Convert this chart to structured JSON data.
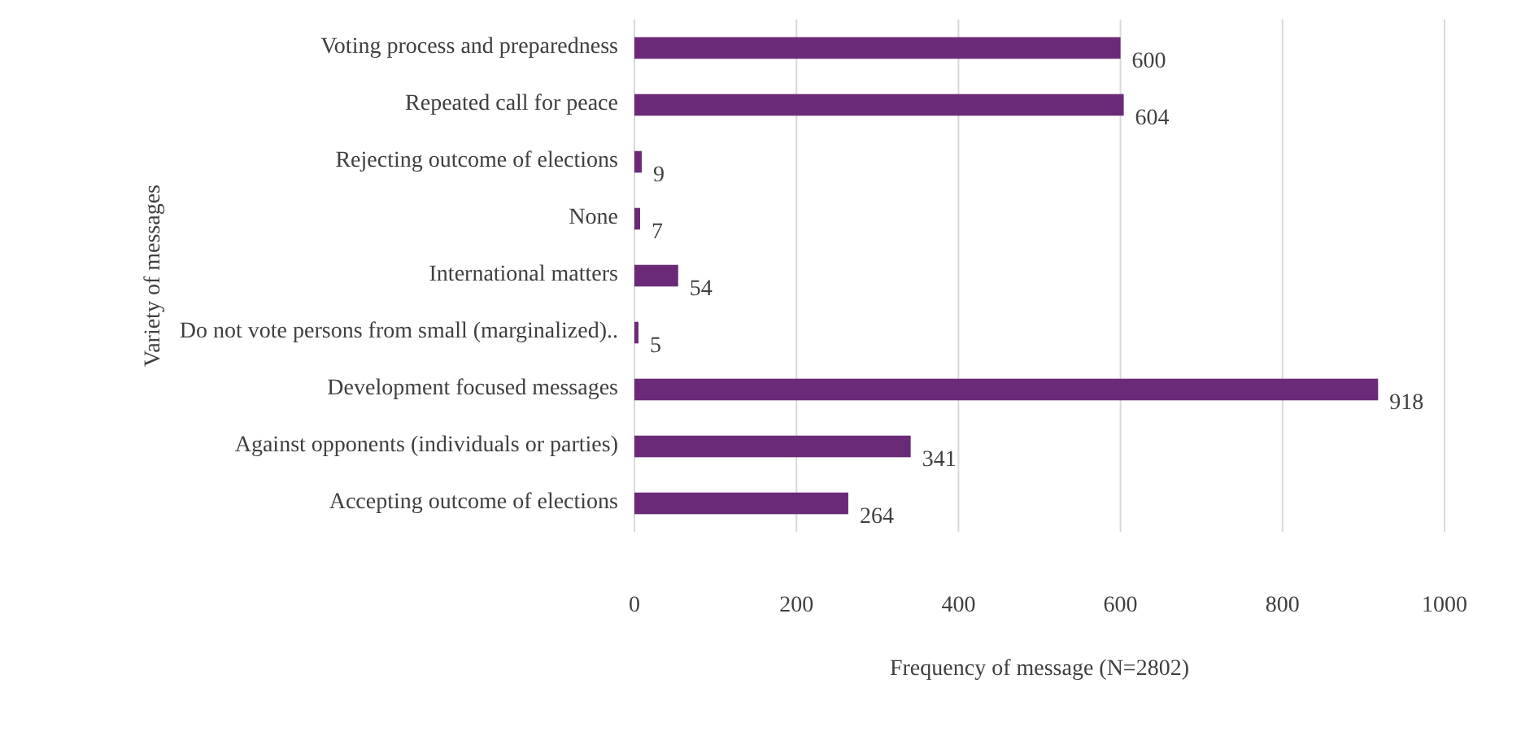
{
  "chart_data": {
    "type": "bar",
    "orientation": "horizontal",
    "xlabel": "Frequency of message (N=2802)",
    "ylabel": "Variety of messages",
    "categories": [
      "Voting process and preparedness",
      "Repeated call for peace",
      "Rejecting outcome of elections",
      "None",
      "International matters",
      "Do not vote persons from small (marginalized)..",
      "Development focused messages",
      "Against opponents (individuals or parties)",
      "Accepting outcome of elections"
    ],
    "values": [
      600,
      604,
      9,
      7,
      54,
      5,
      918,
      341,
      264
    ],
    "color": "#6a2a78",
    "xlim": [
      0,
      1000
    ],
    "xticks": [
      0,
      200,
      400,
      600,
      800,
      1000
    ],
    "grid": "x",
    "data_labels": true
  }
}
